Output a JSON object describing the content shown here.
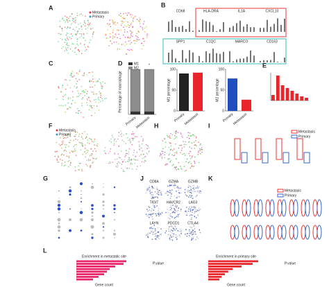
{
  "panel_labels": [
    "A",
    "B",
    "C",
    "D",
    "E",
    "F",
    "G",
    "H",
    "I",
    "J",
    "K",
    "L"
  ],
  "legend": {
    "metastasis": "Metastasis",
    "primary": "Primary"
  },
  "genes_b": [
    "CD68",
    "HLA-DRA",
    "IL1A",
    "CXCL10",
    "SPP1",
    "C1QC",
    "MARCO",
    "CD163"
  ],
  "genes_j": [
    "CD8A",
    "GZMA",
    "GZMB",
    "TIGIT",
    "HAVCR2",
    "LAG3",
    "LAYN",
    "PDCD1",
    "CTLA4"
  ],
  "chart_data": [
    {
      "type": "stacked_bar",
      "ylabel": "Percentage of macrophage",
      "annotation": "*",
      "categories": [
        "Primary",
        "Metastasis"
      ],
      "series": [
        {
          "name": "M1",
          "color": "#333333",
          "values": [
            6,
            6
          ]
        },
        {
          "name": "M2",
          "color": "#8c8c8c",
          "values": [
            94,
            94
          ]
        }
      ],
      "ylim": [
        0,
        100
      ]
    },
    {
      "type": "bar",
      "ylabel": "M1 percentage",
      "categories": [
        "Primary",
        "Metastasis"
      ],
      "values": [
        90,
        92
      ],
      "colors": [
        "#222222",
        "#e8252b"
      ],
      "ylim": [
        0,
        100
      ],
      "yticks": [
        0,
        50,
        100
      ]
    },
    {
      "type": "bar",
      "ylabel": "M2 percentage",
      "categories": [
        "Primary",
        "Metastasis"
      ],
      "values": [
        78,
        27
      ],
      "colors": [
        "#1f4fbf",
        "#e8252b"
      ],
      "ylim": [
        0,
        100
      ],
      "yticks": [
        0,
        50,
        100
      ]
    },
    {
      "type": "bar",
      "categories": [
        null,
        null,
        null,
        null,
        null,
        null,
        null,
        null
      ],
      "values": [
        0.2,
        0.9,
        0.55,
        0.45,
        0.35,
        0.25,
        0.15,
        0.1
      ],
      "colors": [
        "#e8252b"
      ],
      "ylim": [
        0,
        1
      ]
    },
    {
      "type": "hbar",
      "title": "Enrichment in metastatic site",
      "xlabel": "Gene count",
      "legend_title": "P.value",
      "categories": [
        null,
        null,
        null,
        null,
        null,
        null,
        null,
        null
      ],
      "values": [
        9,
        8.5,
        7,
        6,
        5.5,
        5,
        4,
        3
      ],
      "colors": [
        "#e8256b"
      ],
      "xlim": [
        0,
        10
      ]
    },
    {
      "type": "hbar",
      "title": "Enrichment in primary site",
      "xlabel": "Gene count",
      "legend_title": "P.value",
      "categories": [
        null,
        null,
        null,
        null,
        null,
        null,
        null,
        null
      ],
      "values": [
        45,
        40,
        30,
        22,
        18,
        15,
        12,
        10
      ],
      "colors": [
        "#e8252b"
      ],
      "xlim": [
        0,
        50
      ]
    }
  ]
}
